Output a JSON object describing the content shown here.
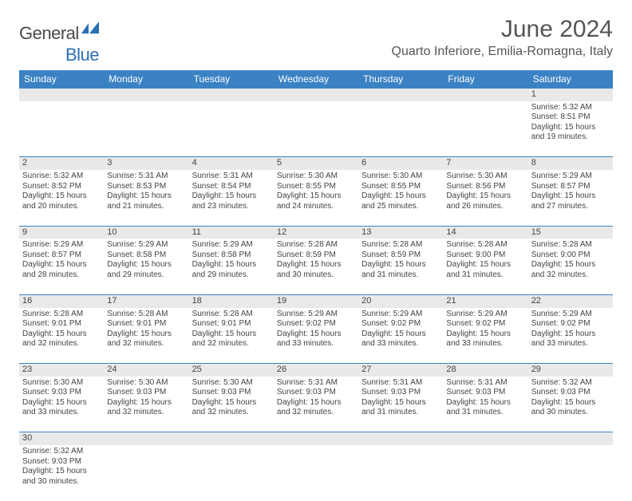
{
  "brand": {
    "part1": "General",
    "part2": "Blue"
  },
  "title": "June 2024",
  "location": "Quarto Inferiore, Emilia-Romagna, Italy",
  "colors": {
    "header_bg": "#3b82c4",
    "header_text": "#ffffff",
    "daynum_bg": "#e9e9e9",
    "row_border": "#3b82c4",
    "body_text": "#444444",
    "brand_gray": "#4a4a4a",
    "brand_blue": "#2a6fb5"
  },
  "weekdays": [
    "Sunday",
    "Monday",
    "Tuesday",
    "Wednesday",
    "Thursday",
    "Friday",
    "Saturday"
  ],
  "weeks": [
    [
      null,
      null,
      null,
      null,
      null,
      null,
      {
        "n": "1",
        "sr": "5:32 AM",
        "ss": "8:51 PM",
        "dh": "15",
        "dm": "19"
      }
    ],
    [
      {
        "n": "2",
        "sr": "5:32 AM",
        "ss": "8:52 PM",
        "dh": "15",
        "dm": "20"
      },
      {
        "n": "3",
        "sr": "5:31 AM",
        "ss": "8:53 PM",
        "dh": "15",
        "dm": "21"
      },
      {
        "n": "4",
        "sr": "5:31 AM",
        "ss": "8:54 PM",
        "dh": "15",
        "dm": "23"
      },
      {
        "n": "5",
        "sr": "5:30 AM",
        "ss": "8:55 PM",
        "dh": "15",
        "dm": "24"
      },
      {
        "n": "6",
        "sr": "5:30 AM",
        "ss": "8:55 PM",
        "dh": "15",
        "dm": "25"
      },
      {
        "n": "7",
        "sr": "5:30 AM",
        "ss": "8:56 PM",
        "dh": "15",
        "dm": "26"
      },
      {
        "n": "8",
        "sr": "5:29 AM",
        "ss": "8:57 PM",
        "dh": "15",
        "dm": "27"
      }
    ],
    [
      {
        "n": "9",
        "sr": "5:29 AM",
        "ss": "8:57 PM",
        "dh": "15",
        "dm": "28"
      },
      {
        "n": "10",
        "sr": "5:29 AM",
        "ss": "8:58 PM",
        "dh": "15",
        "dm": "29"
      },
      {
        "n": "11",
        "sr": "5:29 AM",
        "ss": "8:58 PM",
        "dh": "15",
        "dm": "29"
      },
      {
        "n": "12",
        "sr": "5:28 AM",
        "ss": "8:59 PM",
        "dh": "15",
        "dm": "30"
      },
      {
        "n": "13",
        "sr": "5:28 AM",
        "ss": "8:59 PM",
        "dh": "15",
        "dm": "31"
      },
      {
        "n": "14",
        "sr": "5:28 AM",
        "ss": "9:00 PM",
        "dh": "15",
        "dm": "31"
      },
      {
        "n": "15",
        "sr": "5:28 AM",
        "ss": "9:00 PM",
        "dh": "15",
        "dm": "32"
      }
    ],
    [
      {
        "n": "16",
        "sr": "5:28 AM",
        "ss": "9:01 PM",
        "dh": "15",
        "dm": "32"
      },
      {
        "n": "17",
        "sr": "5:28 AM",
        "ss": "9:01 PM",
        "dh": "15",
        "dm": "32"
      },
      {
        "n": "18",
        "sr": "5:28 AM",
        "ss": "9:01 PM",
        "dh": "15",
        "dm": "32"
      },
      {
        "n": "19",
        "sr": "5:29 AM",
        "ss": "9:02 PM",
        "dh": "15",
        "dm": "33"
      },
      {
        "n": "20",
        "sr": "5:29 AM",
        "ss": "9:02 PM",
        "dh": "15",
        "dm": "33"
      },
      {
        "n": "21",
        "sr": "5:29 AM",
        "ss": "9:02 PM",
        "dh": "15",
        "dm": "33"
      },
      {
        "n": "22",
        "sr": "5:29 AM",
        "ss": "9:02 PM",
        "dh": "15",
        "dm": "33"
      }
    ],
    [
      {
        "n": "23",
        "sr": "5:30 AM",
        "ss": "9:03 PM",
        "dh": "15",
        "dm": "33"
      },
      {
        "n": "24",
        "sr": "5:30 AM",
        "ss": "9:03 PM",
        "dh": "15",
        "dm": "32"
      },
      {
        "n": "25",
        "sr": "5:30 AM",
        "ss": "9:03 PM",
        "dh": "15",
        "dm": "32"
      },
      {
        "n": "26",
        "sr": "5:31 AM",
        "ss": "9:03 PM",
        "dh": "15",
        "dm": "32"
      },
      {
        "n": "27",
        "sr": "5:31 AM",
        "ss": "9:03 PM",
        "dh": "15",
        "dm": "31"
      },
      {
        "n": "28",
        "sr": "5:31 AM",
        "ss": "9:03 PM",
        "dh": "15",
        "dm": "31"
      },
      {
        "n": "29",
        "sr": "5:32 AM",
        "ss": "9:03 PM",
        "dh": "15",
        "dm": "30"
      }
    ],
    [
      {
        "n": "30",
        "sr": "5:32 AM",
        "ss": "9:03 PM",
        "dh": "15",
        "dm": "30"
      },
      null,
      null,
      null,
      null,
      null,
      null
    ]
  ],
  "labels": {
    "sunrise": "Sunrise:",
    "sunset": "Sunset:",
    "daylight": "Daylight:",
    "hours": "hours",
    "and": "and",
    "minutes": "minutes."
  }
}
